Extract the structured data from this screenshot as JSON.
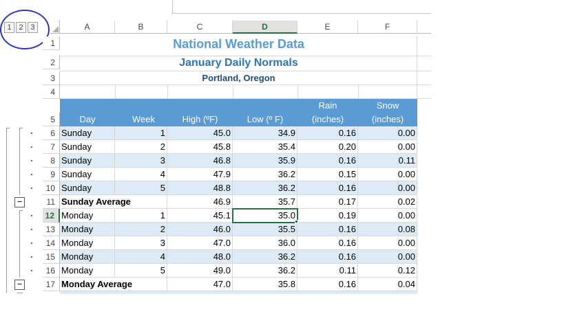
{
  "outline_levels": [
    "1",
    "2",
    "3"
  ],
  "columns": [
    "A",
    "B",
    "C",
    "D",
    "E",
    "F"
  ],
  "selected_column": "D",
  "titles": {
    "row1": "National Weather Data",
    "row2": "January Daily Normals",
    "row3": "Portland, Oregon"
  },
  "header_row": {
    "day": "Day",
    "week": "Week",
    "high": "High (ºF)",
    "low": "Low (º F)",
    "rain_top": "Rain",
    "rain_bottom": "(inches)",
    "snow_top": "Snow",
    "snow_bottom": "(inches)"
  },
  "rows": [
    {
      "num": "6",
      "day": "Sunday",
      "week": "1",
      "high": "45.0",
      "low": "34.9",
      "rain": "0.16",
      "snow": "0.00"
    },
    {
      "num": "7",
      "day": "Sunday",
      "week": "2",
      "high": "45.8",
      "low": "35.4",
      "rain": "0.20",
      "snow": "0.00"
    },
    {
      "num": "8",
      "day": "Sunday",
      "week": "3",
      "high": "46.8",
      "low": "35.9",
      "rain": "0.16",
      "snow": "0.11"
    },
    {
      "num": "9",
      "day": "Sunday",
      "week": "4",
      "high": "47.9",
      "low": "36.2",
      "rain": "0.15",
      "snow": "0.00"
    },
    {
      "num": "10",
      "day": "Sunday",
      "week": "5",
      "high": "48.8",
      "low": "36.2",
      "rain": "0.16",
      "snow": "0.00"
    },
    {
      "num": "11",
      "day": "Sunday Average",
      "week": "",
      "high": "46.9",
      "low": "35.7",
      "rain": "0.17",
      "snow": "0.02"
    },
    {
      "num": "12",
      "day": "Monday",
      "week": "1",
      "high": "45.1",
      "low": "35.0",
      "rain": "0.19",
      "snow": "0.00"
    },
    {
      "num": "13",
      "day": "Monday",
      "week": "2",
      "high": "46.0",
      "low": "35.5",
      "rain": "0.16",
      "snow": "0.08"
    },
    {
      "num": "14",
      "day": "Monday",
      "week": "3",
      "high": "47.0",
      "low": "36.0",
      "rain": "0.16",
      "snow": "0.00"
    },
    {
      "num": "15",
      "day": "Monday",
      "week": "4",
      "high": "48.0",
      "low": "36.2",
      "rain": "0.16",
      "snow": "0.00"
    },
    {
      "num": "16",
      "day": "Monday",
      "week": "5",
      "high": "49.0",
      "low": "36.2",
      "rain": "0.11",
      "snow": "0.12"
    },
    {
      "num": "17",
      "day": "Monday Average",
      "week": "",
      "high": "47.0",
      "low": "35.8",
      "rain": "0.16",
      "snow": "0.04"
    }
  ],
  "header_row_numbers": [
    "1",
    "2",
    "3",
    "4",
    "5"
  ],
  "selected_row": "12",
  "collapse_symbol": "−"
}
